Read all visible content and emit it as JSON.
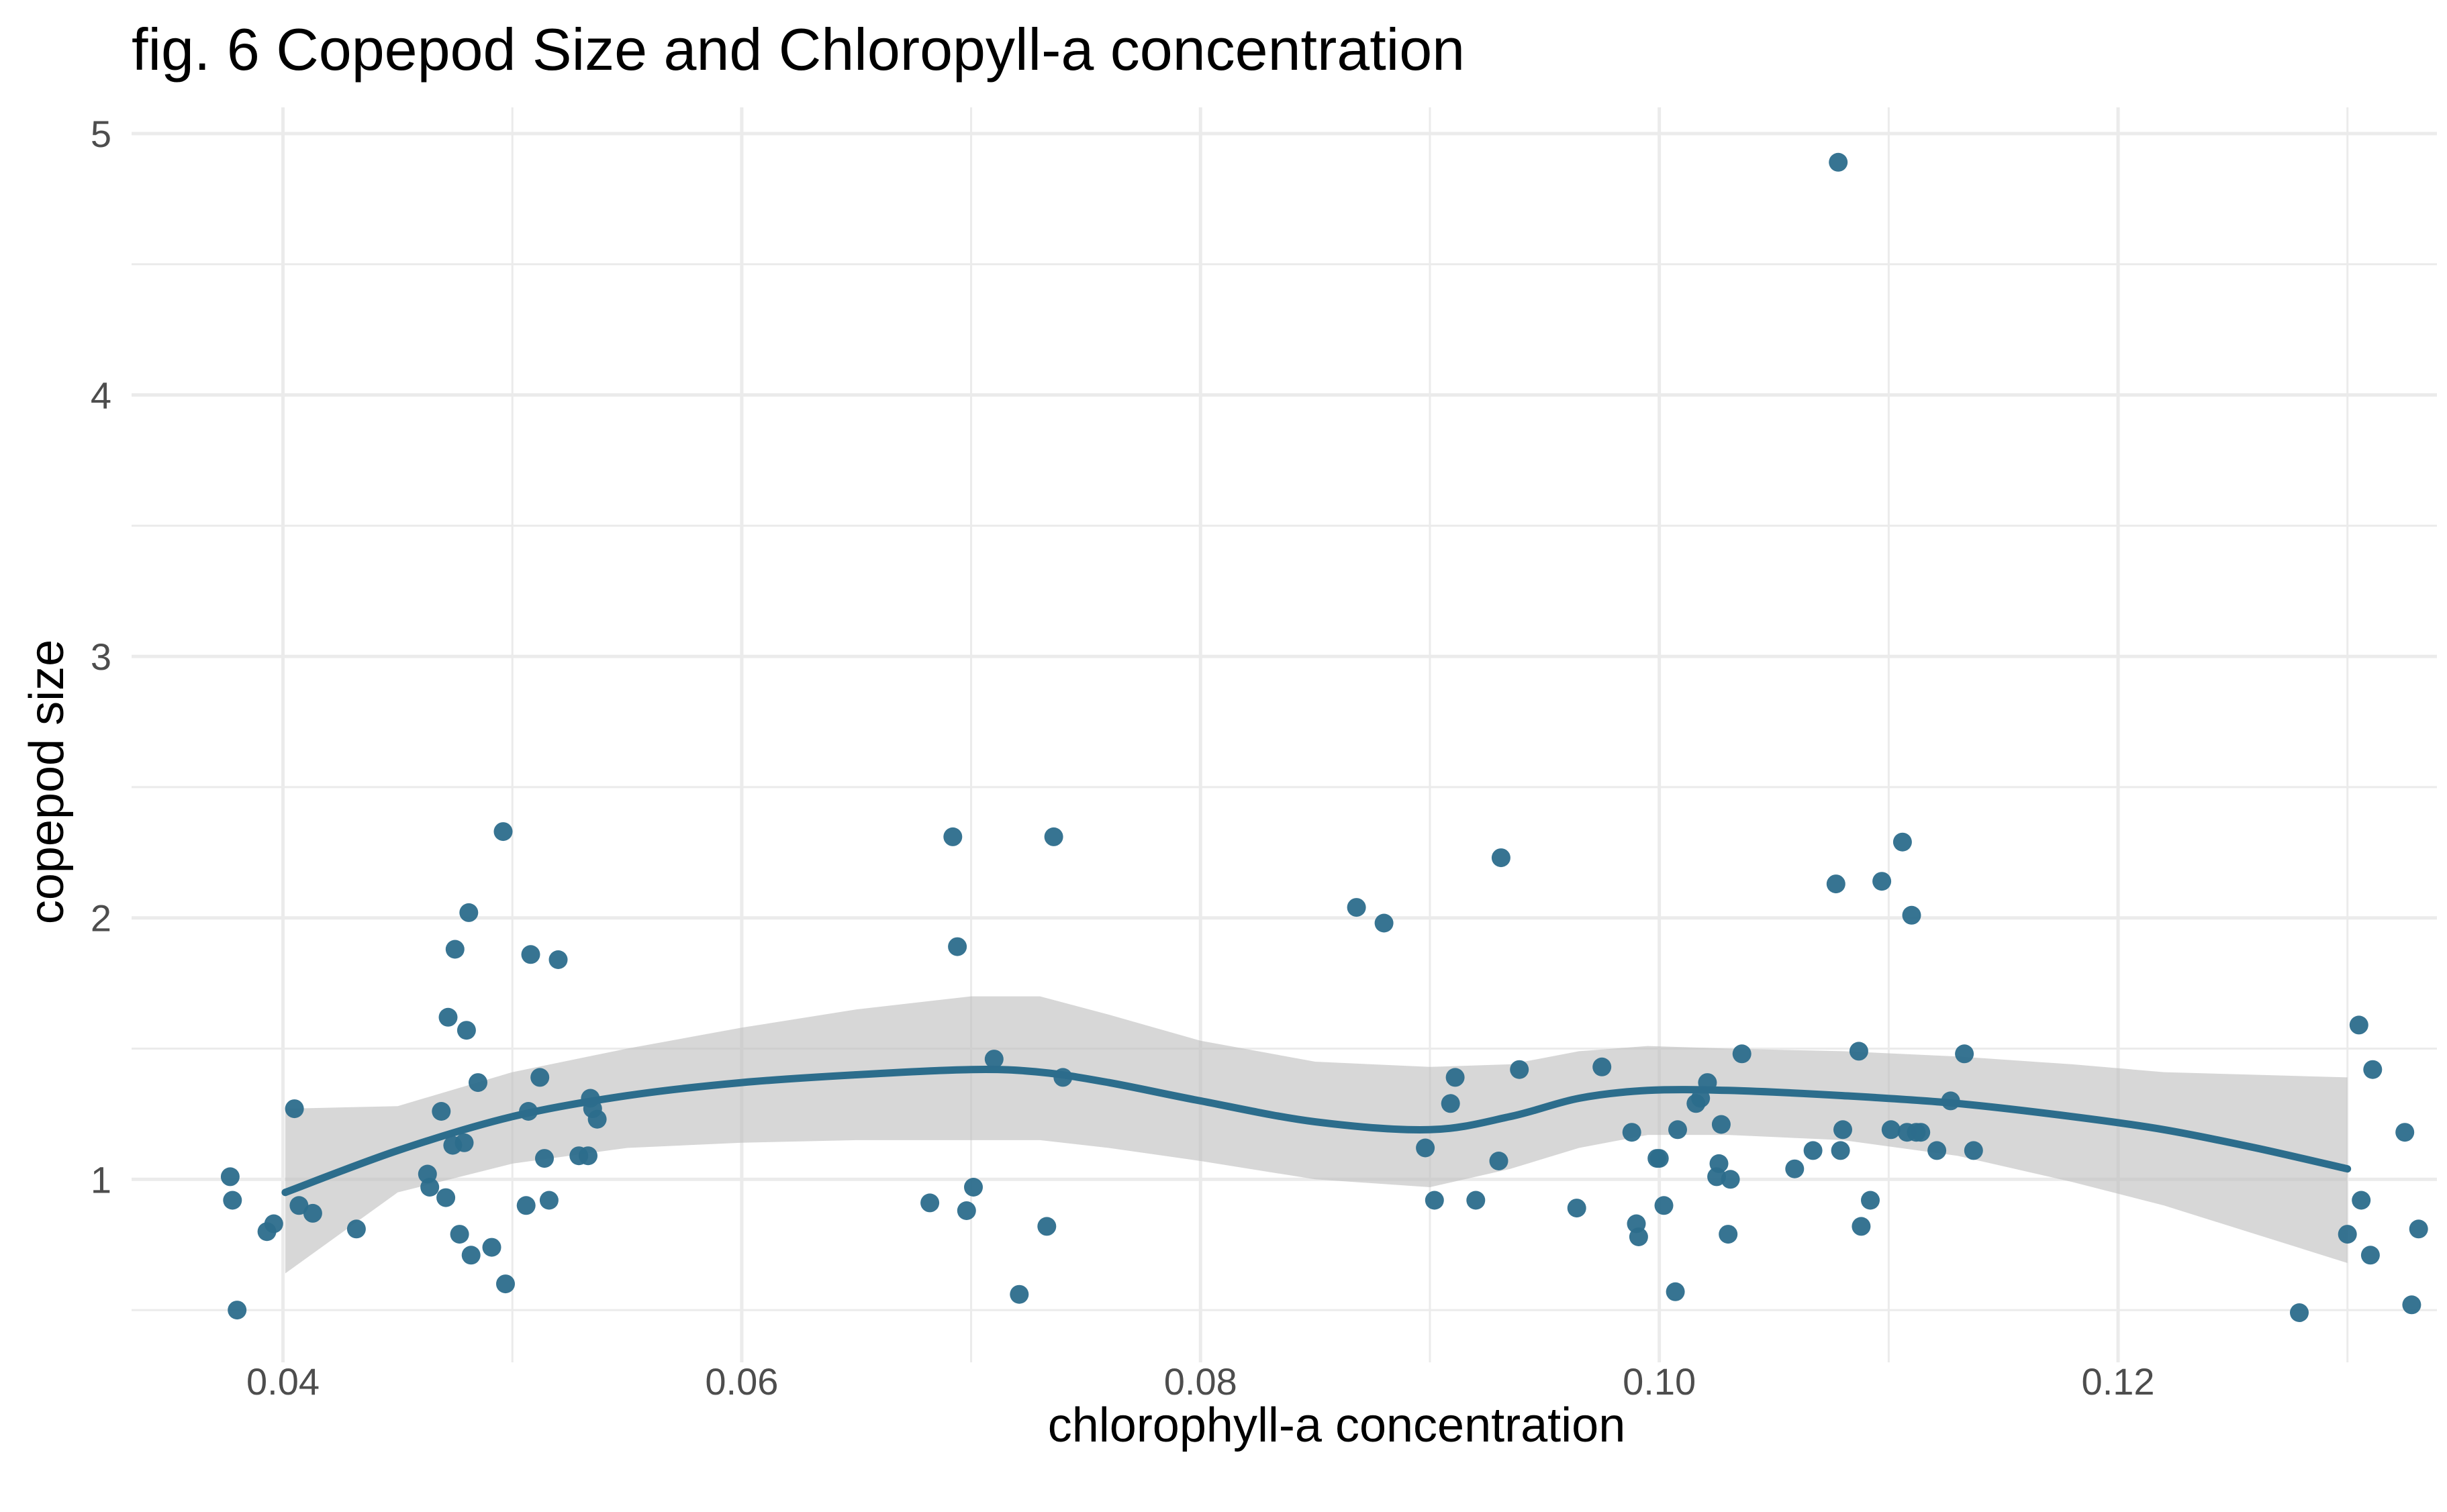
{
  "chart_data": {
    "type": "scatter",
    "title": "fig. 6 Copepod Size and Chloropyll-a concentration",
    "xlabel": "chlorophyll-a concentration",
    "ylabel": "copepod size",
    "xlim": [
      0.0334,
      0.1339
    ],
    "ylim": [
      0.3,
      5.1
    ],
    "x_ticks": [
      0.04,
      0.06,
      0.08,
      0.1,
      0.12
    ],
    "x_tick_labels": [
      "0.04",
      "0.06",
      "0.08",
      "0.10",
      "0.12"
    ],
    "y_ticks": [
      1,
      2,
      3,
      4,
      5
    ],
    "y_tick_labels": [
      "1",
      "2",
      "3",
      "4",
      "5"
    ],
    "grid": true,
    "colors": {
      "point": "#2c6d8c",
      "smooth": "#2c6d8c",
      "ribbon": "#bdbdbd",
      "grid": "#ebebeb"
    },
    "points": [
      {
        "x": 0.0377,
        "y": 1.01
      },
      {
        "x": 0.0378,
        "y": 0.92
      },
      {
        "x": 0.038,
        "y": 0.5
      },
      {
        "x": 0.0393,
        "y": 0.8
      },
      {
        "x": 0.0396,
        "y": 0.83
      },
      {
        "x": 0.0405,
        "y": 1.27
      },
      {
        "x": 0.0407,
        "y": 0.9
      },
      {
        "x": 0.0413,
        "y": 0.87
      },
      {
        "x": 0.0432,
        "y": 0.81
      },
      {
        "x": 0.0463,
        "y": 1.02
      },
      {
        "x": 0.0464,
        "y": 0.97
      },
      {
        "x": 0.0469,
        "y": 1.26
      },
      {
        "x": 0.0471,
        "y": 0.93
      },
      {
        "x": 0.0472,
        "y": 1.62
      },
      {
        "x": 0.0474,
        "y": 1.13
      },
      {
        "x": 0.0475,
        "y": 1.88
      },
      {
        "x": 0.0477,
        "y": 0.79
      },
      {
        "x": 0.0479,
        "y": 1.14
      },
      {
        "x": 0.048,
        "y": 1.57
      },
      {
        "x": 0.0481,
        "y": 2.02
      },
      {
        "x": 0.0482,
        "y": 0.71
      },
      {
        "x": 0.0485,
        "y": 1.37
      },
      {
        "x": 0.0491,
        "y": 0.74
      },
      {
        "x": 0.0496,
        "y": 2.33
      },
      {
        "x": 0.0497,
        "y": 0.6
      },
      {
        "x": 0.0506,
        "y": 0.9
      },
      {
        "x": 0.0507,
        "y": 1.26
      },
      {
        "x": 0.0508,
        "y": 1.86
      },
      {
        "x": 0.0512,
        "y": 1.39
      },
      {
        "x": 0.0514,
        "y": 1.08
      },
      {
        "x": 0.0516,
        "y": 0.92
      },
      {
        "x": 0.052,
        "y": 1.84
      },
      {
        "x": 0.0529,
        "y": 1.09
      },
      {
        "x": 0.0533,
        "y": 1.09
      },
      {
        "x": 0.0534,
        "y": 1.31
      },
      {
        "x": 0.0535,
        "y": 1.27
      },
      {
        "x": 0.0537,
        "y": 1.23
      },
      {
        "x": 0.0682,
        "y": 0.91
      },
      {
        "x": 0.0692,
        "y": 2.31
      },
      {
        "x": 0.0694,
        "y": 1.89
      },
      {
        "x": 0.0698,
        "y": 0.88
      },
      {
        "x": 0.0701,
        "y": 0.97
      },
      {
        "x": 0.071,
        "y": 1.46
      },
      {
        "x": 0.0721,
        "y": 0.56
      },
      {
        "x": 0.0733,
        "y": 0.82
      },
      {
        "x": 0.0736,
        "y": 2.31
      },
      {
        "x": 0.074,
        "y": 1.39
      },
      {
        "x": 0.0868,
        "y": 2.04
      },
      {
        "x": 0.088,
        "y": 1.98
      },
      {
        "x": 0.0898,
        "y": 1.12
      },
      {
        "x": 0.0902,
        "y": 0.92
      },
      {
        "x": 0.0909,
        "y": 1.29
      },
      {
        "x": 0.0911,
        "y": 1.39
      },
      {
        "x": 0.092,
        "y": 0.92
      },
      {
        "x": 0.093,
        "y": 1.07
      },
      {
        "x": 0.0931,
        "y": 2.23
      },
      {
        "x": 0.0939,
        "y": 1.42
      },
      {
        "x": 0.0964,
        "y": 0.89
      },
      {
        "x": 0.0975,
        "y": 1.43
      },
      {
        "x": 0.0988,
        "y": 1.18
      },
      {
        "x": 0.099,
        "y": 0.83
      },
      {
        "x": 0.0991,
        "y": 0.78
      },
      {
        "x": 0.0999,
        "y": 1.08
      },
      {
        "x": 0.1,
        "y": 1.08
      },
      {
        "x": 0.1002,
        "y": 0.9
      },
      {
        "x": 0.1007,
        "y": 0.57
      },
      {
        "x": 0.1008,
        "y": 1.19
      },
      {
        "x": 0.1016,
        "y": 1.29
      },
      {
        "x": 0.1018,
        "y": 1.31
      },
      {
        "x": 0.1021,
        "y": 1.37
      },
      {
        "x": 0.1025,
        "y": 1.01
      },
      {
        "x": 0.1026,
        "y": 1.06
      },
      {
        "x": 0.1027,
        "y": 1.21
      },
      {
        "x": 0.103,
        "y": 0.79
      },
      {
        "x": 0.1031,
        "y": 1.0
      },
      {
        "x": 0.1036,
        "y": 1.48
      },
      {
        "x": 0.1059,
        "y": 1.04
      },
      {
        "x": 0.1067,
        "y": 1.11
      },
      {
        "x": 0.1077,
        "y": 2.13
      },
      {
        "x": 0.1078,
        "y": 4.89
      },
      {
        "x": 0.1079,
        "y": 1.11
      },
      {
        "x": 0.108,
        "y": 1.19
      },
      {
        "x": 0.1087,
        "y": 1.49
      },
      {
        "x": 0.1088,
        "y": 0.82
      },
      {
        "x": 0.1092,
        "y": 0.92
      },
      {
        "x": 0.1097,
        "y": 2.14
      },
      {
        "x": 0.1101,
        "y": 1.19
      },
      {
        "x": 0.1106,
        "y": 2.29
      },
      {
        "x": 0.1108,
        "y": 1.18
      },
      {
        "x": 0.111,
        "y": 2.01
      },
      {
        "x": 0.1112,
        "y": 1.18
      },
      {
        "x": 0.1114,
        "y": 1.18
      },
      {
        "x": 0.1121,
        "y": 1.11
      },
      {
        "x": 0.1127,
        "y": 1.3
      },
      {
        "x": 0.1133,
        "y": 1.48
      },
      {
        "x": 0.1137,
        "y": 1.11
      },
      {
        "x": 0.1279,
        "y": 0.49
      },
      {
        "x": 0.13,
        "y": 0.79
      },
      {
        "x": 0.1305,
        "y": 1.59
      },
      {
        "x": 0.1306,
        "y": 0.92
      },
      {
        "x": 0.131,
        "y": 0.71
      },
      {
        "x": 0.1311,
        "y": 1.42
      },
      {
        "x": 0.1325,
        "y": 1.18
      },
      {
        "x": 0.1328,
        "y": 0.52
      },
      {
        "x": 0.1331,
        "y": 0.81
      }
    ],
    "smooth": {
      "x": [
        0.0401,
        0.045,
        0.05,
        0.055,
        0.06,
        0.065,
        0.07,
        0.073,
        0.076,
        0.08,
        0.085,
        0.09,
        0.0935,
        0.0965,
        0.0995,
        0.103,
        0.108,
        0.113,
        0.118,
        0.122,
        0.126,
        0.13
      ],
      "y": [
        0.95,
        1.11,
        1.24,
        1.32,
        1.37,
        1.4,
        1.42,
        1.41,
        1.37,
        1.3,
        1.22,
        1.19,
        1.24,
        1.31,
        1.34,
        1.34,
        1.32,
        1.29,
        1.24,
        1.19,
        1.12,
        1.04
      ],
      "lower": [
        0.64,
        0.95,
        1.06,
        1.12,
        1.14,
        1.15,
        1.15,
        1.15,
        1.12,
        1.07,
        1.0,
        0.97,
        1.04,
        1.12,
        1.17,
        1.17,
        1.15,
        1.09,
        0.99,
        0.9,
        0.79,
        0.68
      ],
      "upper": [
        1.27,
        1.28,
        1.41,
        1.5,
        1.58,
        1.65,
        1.7,
        1.7,
        1.63,
        1.53,
        1.45,
        1.43,
        1.44,
        1.49,
        1.51,
        1.5,
        1.49,
        1.47,
        1.44,
        1.41,
        1.4,
        1.39
      ]
    }
  }
}
